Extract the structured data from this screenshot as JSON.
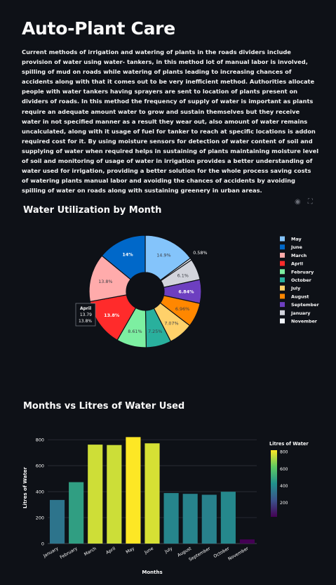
{
  "page": {
    "title": "Auto-Plant Care",
    "description": "Current methods of irrigation and watering of plants in the roads dividers include provision of water using water- tankers, in this method lot of manual labor is involved, spilling of mud on roads while watering of plants leading to increasing chances of accidents along with that it comes out to be very inefficient method. Authorities allocate people with water tankers having sprayers are sent to location of plants present on dividers of roads. In this method the frequency of supply of water is important as plants require an adequate amount water to grow and sustain themselves but they receive water in not specified manner as a result they wear out, also amount of water remains uncalculated, along with it usage of fuel for tanker to reach at specific locations is addon required cost for it. By using moisture sensors for detection of water content of soil and supplying of water when required helps in sustaining of plants maintaining moisture level of soil and monitoring of usage of water in irrigation provides a better understanding of water used for irrigation, providing a better solution for the whole process saving costs of watering plants manual labor and avoiding the chances of accidents by avoiding spilling of water on roads along with sustaining greenery in urban areas."
  },
  "icons": {
    "camera": "camera-icon",
    "fullscreen": "fullscreen-icon"
  },
  "chart_data": [
    {
      "type": "pie",
      "title": "Water Utilization by Month",
      "hole": true,
      "slices": [
        {
          "label": "May",
          "percent": 14.9,
          "value": 820,
          "color": "#84c4fb"
        },
        {
          "label": "November",
          "percent": 0.58,
          "value": 32,
          "color": "#f3f6fb"
        },
        {
          "label": "January",
          "percent": 6.1,
          "value": 336,
          "color": "#d2d4dc"
        },
        {
          "label": "September",
          "percent": 6.84,
          "value": 376,
          "color": "#6d3fc0"
        },
        {
          "label": "August",
          "percent": 6.96,
          "value": 383,
          "color": "#ff8700"
        },
        {
          "label": "July",
          "percent": 7.07,
          "value": 389,
          "color": "#ffd16a"
        },
        {
          "label": "October",
          "percent": 7.25,
          "value": 399,
          "color": "#29b09d"
        },
        {
          "label": "February",
          "percent": 8.61,
          "value": 473,
          "color": "#7defa1"
        },
        {
          "label": "April",
          "percent": 13.8,
          "value": 759,
          "color": "#ff2b2b"
        },
        {
          "label": "March",
          "percent": 13.8,
          "value": 762,
          "color": "#ffabab"
        },
        {
          "label": "June",
          "percent": 14,
          "value": 772,
          "color": "#0068c9"
        }
      ],
      "legend_order": [
        "May",
        "June",
        "March",
        "April",
        "February",
        "October",
        "July",
        "August",
        "September",
        "January",
        "November"
      ],
      "legend_position": "right",
      "hover": {
        "label": "April",
        "value": "13.79",
        "percent": "13.8%"
      }
    },
    {
      "type": "bar",
      "title": "Months vs Litres of Water Used",
      "xlabel": "Months",
      "ylabel": "Litres of Water",
      "categories": [
        "January",
        "February",
        "March",
        "April",
        "May",
        "June",
        "July",
        "August",
        "September",
        "October",
        "November"
      ],
      "values": [
        336,
        473,
        762,
        759,
        820,
        772,
        389,
        383,
        376,
        399,
        32
      ],
      "ylim": [
        0,
        860
      ],
      "yticks": [
        0,
        200,
        400,
        600,
        800
      ],
      "grid": true,
      "colorbar": {
        "title": "Litres of Water",
        "ticks": [
          200,
          400,
          600,
          800
        ],
        "min": 32,
        "max": 820
      }
    }
  ]
}
